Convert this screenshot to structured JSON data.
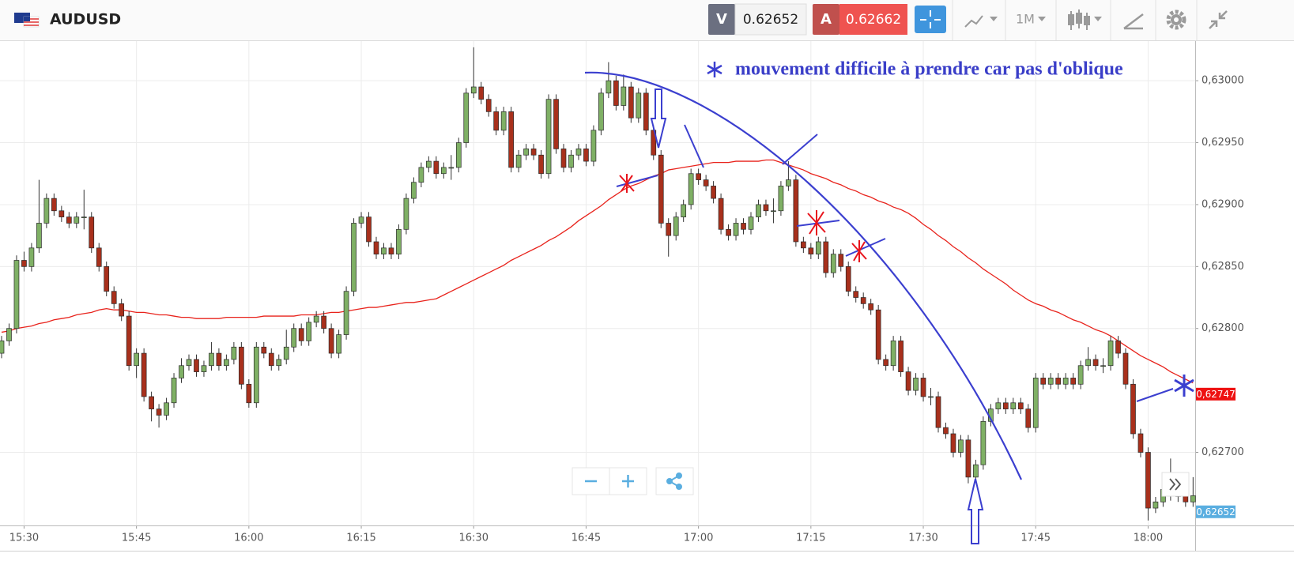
{
  "header": {
    "symbol": "AUDUSD",
    "bid": {
      "letter": "V",
      "price": "0.62652"
    },
    "ask": {
      "letter": "A",
      "price": "0.62662"
    },
    "timeframe": "1M"
  },
  "chart_data": {
    "type": "candlestick",
    "annotation": "mouvement difficile à prendre car pas d'oblique",
    "categories": [
      null,
      null,
      null,
      "15:30",
      null,
      null,
      null,
      null,
      null,
      null,
      null,
      null,
      null,
      null,
      null,
      null,
      null,
      null,
      "15:45",
      null,
      null,
      null,
      null,
      null,
      null,
      null,
      null,
      null,
      null,
      null,
      null,
      null,
      null,
      "16:00",
      null,
      null,
      null,
      null,
      null,
      null,
      null,
      null,
      null,
      null,
      null,
      null,
      null,
      null,
      "16:15",
      null,
      null,
      null,
      null,
      null,
      null,
      null,
      null,
      null,
      null,
      null,
      null,
      null,
      null,
      "16:30",
      null,
      null,
      null,
      null,
      null,
      null,
      null,
      null,
      null,
      null,
      null,
      null,
      null,
      null,
      "16:45",
      null,
      null,
      null,
      null,
      null,
      null,
      null,
      null,
      null,
      null,
      null,
      null,
      null,
      null,
      "17:00",
      null,
      null,
      null,
      null,
      null,
      null,
      null,
      null,
      null,
      null,
      null,
      null,
      null,
      null,
      "17:15",
      null,
      null,
      null,
      null,
      null,
      null,
      null,
      null,
      null,
      null,
      null,
      null,
      null,
      null,
      "17:30",
      null,
      null,
      null,
      null,
      null,
      null,
      null,
      null,
      null,
      null,
      null,
      null,
      null,
      null,
      "17:45",
      null,
      null,
      null,
      null,
      null,
      null,
      null,
      null,
      null,
      null,
      null,
      null,
      null,
      null,
      "18:00",
      null,
      null,
      null,
      null,
      null,
      null
    ],
    "open": [
      0.6278,
      0.6279,
      0.628,
      0.62855,
      0.6285,
      0.62865,
      0.62885,
      0.62905,
      0.62895,
      0.6289,
      0.62885,
      0.6289,
      0.6289,
      0.62865,
      0.6285,
      0.6283,
      0.6282,
      0.6281,
      0.6277,
      0.6278,
      0.62745,
      0.62735,
      0.6273,
      0.6274,
      0.6276,
      0.6277,
      0.62775,
      0.62765,
      0.6277,
      0.6278,
      0.6277,
      0.62775,
      0.62785,
      0.62755,
      0.6274,
      0.62785,
      0.6278,
      0.6277,
      0.62775,
      0.62785,
      0.628,
      0.6279,
      0.62805,
      0.6281,
      0.628,
      0.6278,
      0.62795,
      0.6283,
      0.62885,
      0.6289,
      0.6287,
      0.6286,
      0.62865,
      0.6286,
      0.6288,
      0.62905,
      0.62918,
      0.6293,
      0.62935,
      0.62925,
      0.6293,
      0.6293,
      0.6295,
      0.6299,
      0.62995,
      0.62985,
      0.62975,
      0.6296,
      0.62975,
      0.6293,
      0.6294,
      0.62945,
      0.6294,
      0.62925,
      0.62985,
      0.62945,
      0.6293,
      0.6294,
      0.62945,
      0.62935,
      0.6296,
      0.6299,
      0.63,
      0.6298,
      0.62995,
      0.6297,
      0.6299,
      0.6296,
      0.6294,
      0.62885,
      0.62875,
      0.6289,
      0.629,
      0.62925,
      0.6292,
      0.62915,
      0.62905,
      0.6288,
      0.62875,
      0.62885,
      0.6288,
      0.6289,
      0.629,
      0.62895,
      0.62895,
      0.62915,
      0.6292,
      0.6287,
      0.62865,
      0.6286,
      0.6287,
      0.62845,
      0.6286,
      0.6285,
      0.6283,
      0.62825,
      0.6282,
      0.62815,
      0.62775,
      0.6277,
      0.6279,
      0.62765,
      0.6275,
      0.6276,
      0.62745,
      0.62745,
      0.6272,
      0.62715,
      0.627,
      0.6271,
      0.6268,
      0.6269,
      0.62725,
      0.62735,
      0.6274,
      0.62735,
      0.6274,
      0.62735,
      0.6272,
      0.6276,
      0.62755,
      0.6276,
      0.62755,
      0.6276,
      0.62755,
      0.6277,
      0.62775,
      0.6277,
      0.6277,
      0.6279,
      0.6278,
      0.62755,
      0.62715,
      0.627,
      0.62655,
      0.6266,
      0.6267,
      0.62665,
      0.62665,
      0.6266
    ],
    "high": [
      0.62794,
      0.62804,
      0.62859,
      0.62862,
      0.62869,
      0.6292,
      0.62909,
      0.62909,
      0.62899,
      0.62894,
      0.62894,
      0.62912,
      0.62894,
      0.62869,
      0.62854,
      0.62834,
      0.62824,
      0.62814,
      0.62784,
      0.62784,
      0.62749,
      0.62739,
      0.62744,
      0.62764,
      0.62776,
      0.62779,
      0.62779,
      0.62774,
      0.62789,
      0.62784,
      0.62779,
      0.62789,
      0.62789,
      0.62759,
      0.62789,
      0.62789,
      0.62784,
      0.62779,
      0.62799,
      0.62804,
      0.62804,
      0.62809,
      0.62814,
      0.62814,
      0.62804,
      0.62799,
      0.62834,
      0.62889,
      0.62894,
      0.62894,
      0.62874,
      0.62869,
      0.62869,
      0.62884,
      0.62909,
      0.62922,
      0.62934,
      0.62939,
      0.62939,
      0.62934,
      0.6294,
      0.62954,
      0.62994,
      0.63027,
      0.62999,
      0.62989,
      0.62979,
      0.62979,
      0.62979,
      0.62944,
      0.62949,
      0.62949,
      0.62944,
      0.62989,
      0.62989,
      0.62949,
      0.62944,
      0.62949,
      0.62949,
      0.62964,
      0.62994,
      0.63015,
      0.63004,
      0.63005,
      0.62999,
      0.62994,
      0.62994,
      0.62964,
      0.62944,
      0.62889,
      0.62894,
      0.62904,
      0.62929,
      0.62929,
      0.62924,
      0.62919,
      0.62909,
      0.62884,
      0.62889,
      0.62889,
      0.62894,
      0.62904,
      0.62904,
      0.62905,
      0.62919,
      0.62935,
      0.62924,
      0.62874,
      0.62869,
      0.62874,
      0.62874,
      0.62864,
      0.62864,
      0.62854,
      0.62834,
      0.62829,
      0.62824,
      0.62819,
      0.62779,
      0.62794,
      0.62794,
      0.62769,
      0.62764,
      0.62764,
      0.62752,
      0.62749,
      0.62724,
      0.62719,
      0.62714,
      0.62714,
      0.62694,
      0.62729,
      0.62739,
      0.62744,
      0.62744,
      0.62744,
      0.62744,
      0.62739,
      0.62764,
      0.62764,
      0.62764,
      0.62764,
      0.62764,
      0.62764,
      0.62774,
      0.62785,
      0.62779,
      0.62776,
      0.62794,
      0.62794,
      0.62784,
      0.62759,
      0.62719,
      0.62704,
      0.62664,
      0.62674,
      0.62695,
      0.6267,
      0.62669,
      0.6268
    ],
    "low": [
      0.62776,
      0.62786,
      0.62796,
      0.62846,
      0.62846,
      0.62861,
      0.62881,
      0.62891,
      0.62886,
      0.62881,
      0.62881,
      0.6288,
      0.62861,
      0.62846,
      0.62826,
      0.62816,
      0.62806,
      0.62766,
      0.6276,
      0.62741,
      0.62725,
      0.6272,
      0.62726,
      0.62736,
      0.62756,
      0.62766,
      0.62761,
      0.62761,
      0.62766,
      0.62766,
      0.62766,
      0.62771,
      0.62751,
      0.62736,
      0.62736,
      0.62776,
      0.62766,
      0.62766,
      0.62771,
      0.62781,
      0.62786,
      0.62786,
      0.62801,
      0.62796,
      0.62776,
      0.62776,
      0.62791,
      0.62826,
      0.62881,
      0.62866,
      0.62856,
      0.62856,
      0.62856,
      0.62856,
      0.62876,
      0.62901,
      0.62914,
      0.62926,
      0.62921,
      0.62921,
      0.6292,
      0.62926,
      0.62946,
      0.62986,
      0.62981,
      0.62971,
      0.62956,
      0.62956,
      0.62926,
      0.62926,
      0.62936,
      0.62936,
      0.62921,
      0.62921,
      0.62941,
      0.62926,
      0.62926,
      0.62936,
      0.62931,
      0.62931,
      0.62956,
      0.62986,
      0.62976,
      0.62976,
      0.62966,
      0.62966,
      0.62956,
      0.62936,
      0.62881,
      0.62858,
      0.62871,
      0.62886,
      0.62896,
      0.62916,
      0.62911,
      0.62901,
      0.62876,
      0.62871,
      0.62871,
      0.62876,
      0.62876,
      0.62886,
      0.62891,
      0.62885,
      0.62891,
      0.62911,
      0.62866,
      0.62861,
      0.62856,
      0.62856,
      0.62841,
      0.62841,
      0.62846,
      0.62826,
      0.62821,
      0.62816,
      0.62811,
      0.62771,
      0.62766,
      0.62766,
      0.62761,
      0.62746,
      0.62746,
      0.62741,
      0.62738,
      0.62716,
      0.62711,
      0.62696,
      0.62696,
      0.62675,
      0.62676,
      0.62686,
      0.62721,
      0.62731,
      0.62731,
      0.62731,
      0.62731,
      0.62716,
      0.62716,
      0.62751,
      0.62751,
      0.62751,
      0.62751,
      0.62751,
      0.62751,
      0.62766,
      0.62766,
      0.62764,
      0.62766,
      0.62776,
      0.62751,
      0.62711,
      0.62696,
      0.62645,
      0.62651,
      0.62656,
      0.62661,
      0.6266,
      0.62656,
      0.62656
    ],
    "close": [
      0.6279,
      0.628,
      0.62855,
      0.6285,
      0.62865,
      0.62885,
      0.62905,
      0.62895,
      0.6289,
      0.62885,
      0.6289,
      0.6289,
      0.62865,
      0.6285,
      0.6283,
      0.6282,
      0.6281,
      0.6277,
      0.6278,
      0.62745,
      0.62735,
      0.6273,
      0.6274,
      0.6276,
      0.6277,
      0.62775,
      0.62765,
      0.6277,
      0.6278,
      0.6277,
      0.62775,
      0.62785,
      0.62755,
      0.6274,
      0.62785,
      0.6278,
      0.6277,
      0.62775,
      0.62785,
      0.628,
      0.6279,
      0.62805,
      0.6281,
      0.628,
      0.6278,
      0.62795,
      0.6283,
      0.62885,
      0.6289,
      0.6287,
      0.6286,
      0.62865,
      0.6286,
      0.6288,
      0.62905,
      0.62918,
      0.6293,
      0.62935,
      0.62925,
      0.6293,
      0.6293,
      0.6295,
      0.6299,
      0.62995,
      0.62985,
      0.62975,
      0.6296,
      0.62975,
      0.6293,
      0.6294,
      0.62945,
      0.6294,
      0.62925,
      0.62985,
      0.62945,
      0.6293,
      0.6294,
      0.62945,
      0.62935,
      0.6296,
      0.6299,
      0.63,
      0.6298,
      0.62995,
      0.6297,
      0.6299,
      0.6296,
      0.6294,
      0.62885,
      0.62875,
      0.6289,
      0.629,
      0.62925,
      0.6292,
      0.62915,
      0.62905,
      0.6288,
      0.62875,
      0.62885,
      0.6288,
      0.6289,
      0.629,
      0.62895,
      0.62895,
      0.62915,
      0.6292,
      0.6287,
      0.62865,
      0.6286,
      0.6287,
      0.62845,
      0.6286,
      0.6285,
      0.6283,
      0.62825,
      0.6282,
      0.62815,
      0.62775,
      0.6277,
      0.6279,
      0.62765,
      0.6275,
      0.6276,
      0.62745,
      0.62745,
      0.6272,
      0.62715,
      0.627,
      0.6271,
      0.6268,
      0.6269,
      0.62725,
      0.62735,
      0.6274,
      0.62735,
      0.6274,
      0.62735,
      0.6272,
      0.6276,
      0.62755,
      0.6276,
      0.62755,
      0.6276,
      0.62755,
      0.6277,
      0.62775,
      0.6277,
      0.6277,
      0.6279,
      0.6278,
      0.62755,
      0.62715,
      0.627,
      0.62655,
      0.6266,
      0.6267,
      0.62665,
      0.62665,
      0.6266,
      0.62665
    ],
    "up_color": "#7fb065",
    "down_color": "#a8301c",
    "moving_average": {
      "color": "#e8231c",
      "values": [
        0.62797,
        0.62798,
        0.628,
        0.62801,
        0.62802,
        0.62804,
        0.62805,
        0.62807,
        0.62808,
        0.62809,
        0.62811,
        0.62812,
        0.62813,
        0.62815,
        0.62816,
        0.62815,
        0.62815,
        0.62814,
        0.62813,
        0.62813,
        0.62812,
        0.62811,
        0.62811,
        0.6281,
        0.62809,
        0.62809,
        0.62808,
        0.62808,
        0.62808,
        0.62808,
        0.62809,
        0.62809,
        0.62809,
        0.62809,
        0.62809,
        0.6281,
        0.6281,
        0.6281,
        0.6281,
        0.6281,
        0.62811,
        0.62811,
        0.62811,
        0.62812,
        0.62813,
        0.62813,
        0.62814,
        0.62815,
        0.62816,
        0.62817,
        0.62817,
        0.62818,
        0.62819,
        0.6282,
        0.62821,
        0.62821,
        0.62822,
        0.62823,
        0.62824,
        0.62827,
        0.6283,
        0.62833,
        0.62836,
        0.62839,
        0.62842,
        0.62845,
        0.62848,
        0.62851,
        0.62855,
        0.62858,
        0.62861,
        0.62864,
        0.62867,
        0.62871,
        0.62874,
        0.62878,
        0.62882,
        0.62887,
        0.62891,
        0.62895,
        0.62899,
        0.62904,
        0.62908,
        0.62912,
        0.62915,
        0.62917,
        0.6292,
        0.62923,
        0.62925,
        0.62928,
        0.62929,
        0.6293,
        0.62931,
        0.62932,
        0.62933,
        0.62934,
        0.62934,
        0.62934,
        0.62935,
        0.62935,
        0.62935,
        0.62935,
        0.62936,
        0.62936,
        0.62934,
        0.62932,
        0.6293,
        0.62928,
        0.62925,
        0.62923,
        0.62921,
        0.62918,
        0.62916,
        0.62913,
        0.62911,
        0.62908,
        0.62906,
        0.62903,
        0.62901,
        0.62898,
        0.62896,
        0.62893,
        0.62889,
        0.62884,
        0.6288,
        0.62875,
        0.62871,
        0.62866,
        0.62862,
        0.62857,
        0.62853,
        0.62848,
        0.62844,
        0.6284,
        0.62836,
        0.62831,
        0.62827,
        0.62823,
        0.6282,
        0.62818,
        0.62815,
        0.62813,
        0.6281,
        0.62807,
        0.62805,
        0.62802,
        0.62799,
        0.62797,
        0.62794,
        0.6279,
        0.62786,
        0.62782,
        0.62778,
        0.62775,
        0.62772,
        0.62769,
        0.62765,
        0.62762,
        0.62759,
        0.62756
      ]
    },
    "price_tags": [
      {
        "value": 0.62747,
        "label": "0,62747",
        "color": "#ee1111"
      },
      {
        "value": 0.62652,
        "label": "0,62652",
        "color": "#5aaee0"
      }
    ],
    "ylim": [
      0.62641,
      0.63032
    ],
    "yticks": [
      {
        "value": 0.627,
        "label": "0,62700"
      },
      {
        "value": 0.628,
        "label": "0,62800"
      },
      {
        "value": 0.6285,
        "label": "0,62850"
      },
      {
        "value": 0.629,
        "label": "0,62900"
      },
      {
        "value": 0.6295,
        "label": "0,62950"
      },
      {
        "value": 0.63,
        "label": "0,63000"
      }
    ],
    "grid": true
  }
}
